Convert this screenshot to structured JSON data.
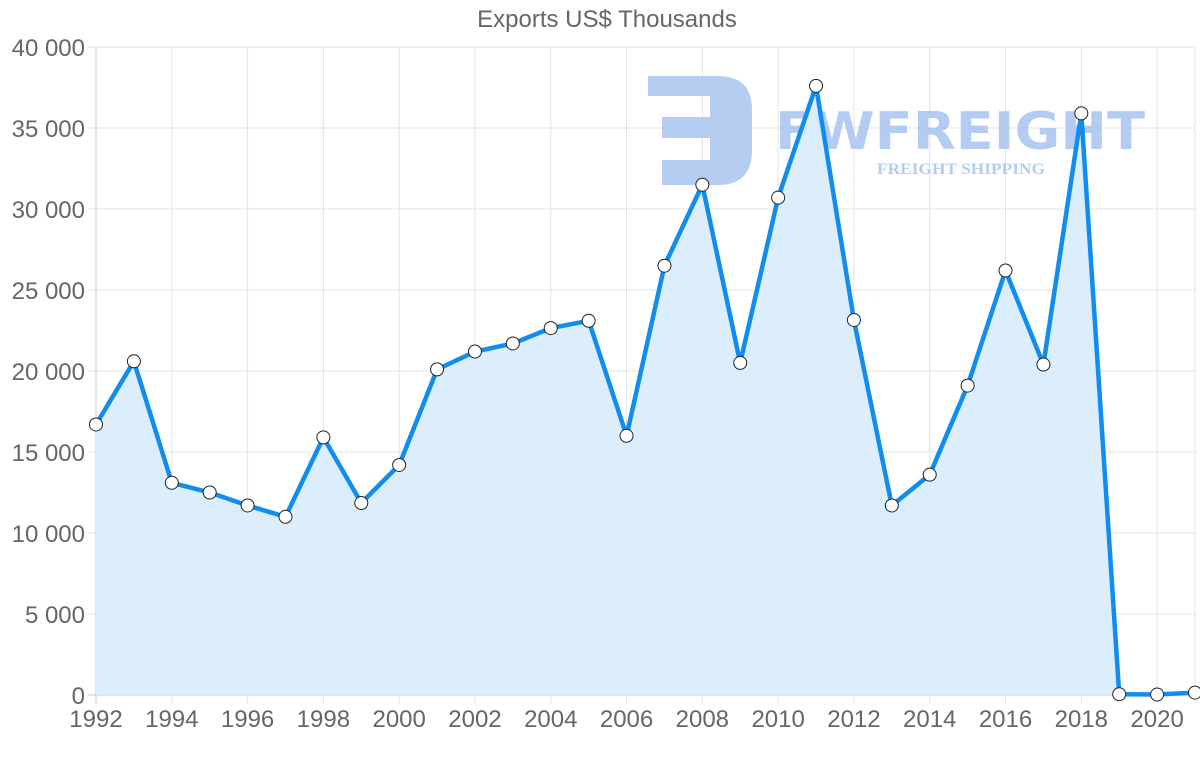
{
  "chart_data": {
    "type": "area",
    "title": "Exports US$ Thousands",
    "xlabel": "",
    "ylabel": "",
    "x": [
      1992,
      1993,
      1994,
      1995,
      1996,
      1997,
      1998,
      1999,
      2000,
      2001,
      2002,
      2003,
      2004,
      2005,
      2006,
      2007,
      2008,
      2009,
      2010,
      2011,
      2012,
      2013,
      2014,
      2015,
      2016,
      2017,
      2018,
      2019,
      2020,
      2021
    ],
    "series": [
      {
        "name": "Exports US$ Thousands",
        "values": [
          16700,
          20600,
          13100,
          12500,
          11700,
          11000,
          15900,
          11850,
          14200,
          20100,
          21200,
          21700,
          22650,
          23100,
          16000,
          26500,
          31500,
          20500,
          30700,
          37600,
          23150,
          11700,
          13600,
          19100,
          26200,
          20400,
          35900,
          50,
          30,
          150
        ]
      }
    ],
    "ylim": [
      0,
      40000
    ],
    "xlim": [
      1992,
      2021
    ],
    "y_ticks": [
      "0",
      "5 000",
      "10 000",
      "15 000",
      "20 000",
      "25 000",
      "30 000",
      "35 000",
      "40 000"
    ],
    "x_ticks": [
      "1992",
      "1994",
      "1996",
      "1998",
      "2000",
      "2002",
      "2004",
      "2006",
      "2008",
      "2010",
      "2012",
      "2014",
      "2016",
      "2018",
      "2020"
    ],
    "grid": true,
    "legend": "none",
    "colors": {
      "line": "#118DEF",
      "fill": "#D8ECFC",
      "point_fill": "#FFFFFF",
      "point_stroke": "#222222"
    }
  },
  "watermark": {
    "brand": "FWFREIGHT",
    "tagline": "FREIGHT SHIPPING",
    "color": "#A9C4F0"
  }
}
